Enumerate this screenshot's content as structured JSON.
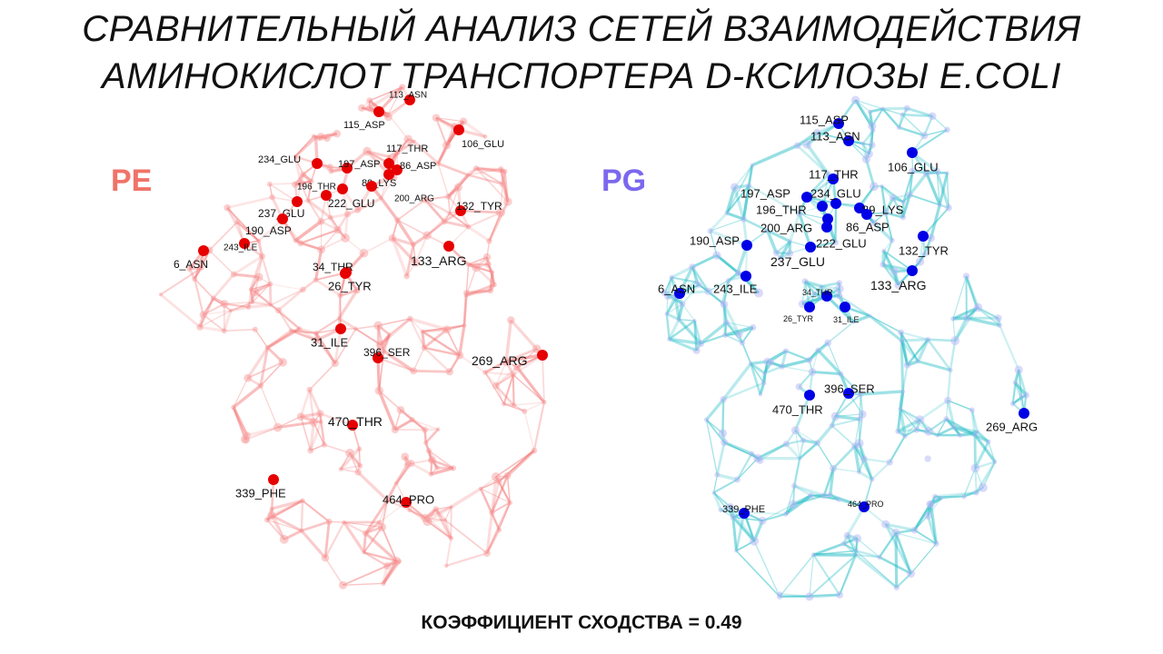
{
  "title": {
    "line1": "СРАВНИТЕЛЬНЫЙ АНАЛИЗ СЕТЕЙ ВЗАИМОДЕЙСТВИЯ",
    "line2": "АМИНОКИСЛОТ ТРАНСПОРТЕРА D-КСИЛОЗЫ E.COLI"
  },
  "networks": [
    {
      "id": "pe",
      "label": "PE",
      "label_color": "#f07368",
      "edge_color": "#f26b6b",
      "node_color": "#e60000",
      "nodes": [
        "113_ASN",
        "115_ASP",
        "106_GLU",
        "117_THR",
        "234_GLU",
        "197_ASP",
        "86_ASP",
        "89_LYS",
        "196_THR",
        "200_ARG",
        "222_GLU",
        "132_TYR",
        "237_GLU",
        "190_ASP",
        "243_ILE",
        "6_ASN",
        "133_ARG",
        "34_THR",
        "26_TYR",
        "31_ILE",
        "396_SER",
        "269_ARG",
        "470_THR",
        "339_PHE",
        "464_PRO"
      ]
    },
    {
      "id": "pg",
      "label": "PG",
      "label_color": "#7b68ee",
      "edge_color": "#1fbcc4",
      "node_color": "#0000e6",
      "nodes": [
        "115_ASP",
        "113_ASN",
        "106_GLU",
        "117_THR",
        "197_ASP",
        "234_GLU",
        "89_LYS",
        "196_THR",
        "200_ARG",
        "86_ASP",
        "190_ASP",
        "222_GLU",
        "132_TYR",
        "237_GLU",
        "133_ARG",
        "6_ASN",
        "243_ILE",
        "34_THR",
        "26_TYR",
        "31_ILE",
        "396_SER",
        "470_THR",
        "269_ARG",
        "339_PHE",
        "464_PRO"
      ]
    }
  ],
  "footer": "КОЭФФИЦИЕНТ СХОДСТВА = 0.49"
}
